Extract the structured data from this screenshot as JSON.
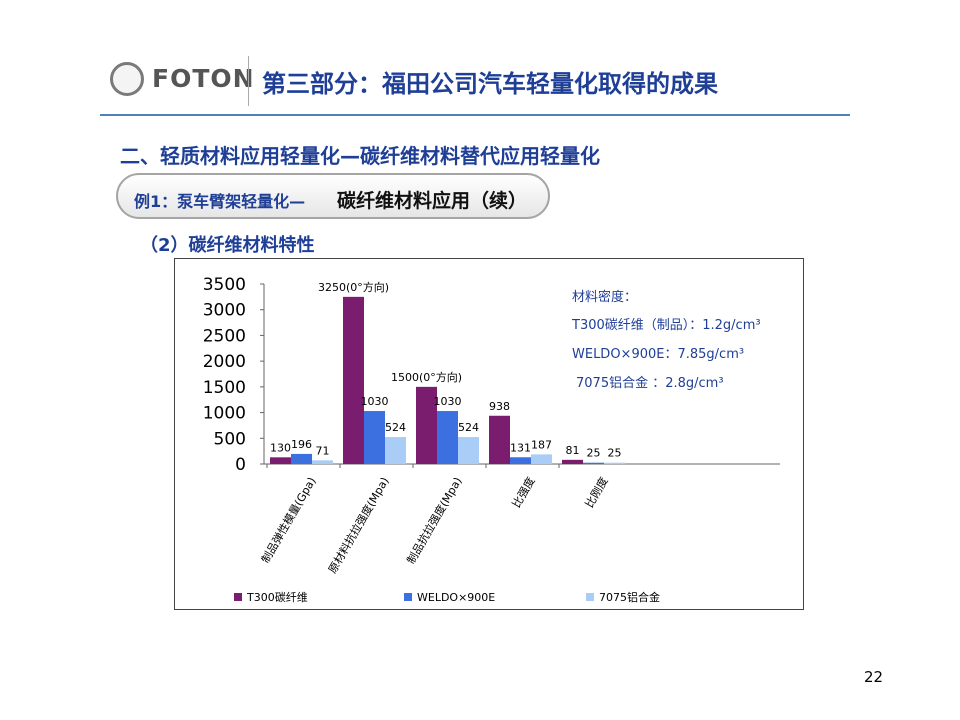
{
  "header": {
    "logo_text": "FOTON",
    "title": "第三部分：福田公司汽车轻量化取得的成果"
  },
  "section_title": "二、轻质材料应用轻量化—碳纤维材料替代应用轻量化",
  "example_label": {
    "part1": "例1：泵车臂架轻量化—",
    "part2": "碳纤维材料应用（续）"
  },
  "subsection_title": "（2）碳纤维材料特性",
  "density_note": {
    "heading": "材料密度：",
    "lines": [
      "T300碳纤维（制品）：1.2g/cm³",
      "WELDO×900E：7.85g/cm³",
      "7075铝合金 ：2.8g/cm³"
    ]
  },
  "page_number": "22",
  "chart_data": {
    "type": "bar",
    "categories": [
      "制品弹性模量(Gpa)",
      "原材料抗拉强度(Mpa)",
      "制品抗拉强度(Mpa)",
      "比强度",
      "比刚度"
    ],
    "series": [
      {
        "name": "T300碳纤维",
        "values": [
          130,
          3250,
          1500,
          938,
          81
        ],
        "labels": [
          "130",
          "3250(0°方向)",
          "1500(0°方向)",
          "938",
          "81"
        ],
        "color": "#7b1d6e"
      },
      {
        "name": "WELDO×900E",
        "values": [
          196,
          1030,
          1030,
          131,
          25
        ],
        "labels": [
          "196",
          "1030",
          "1030",
          "131",
          "25"
        ],
        "color": "#3c6fe0"
      },
      {
        "name": "7075铝合金",
        "values": [
          71,
          524,
          524,
          187,
          25
        ],
        "labels": [
          "71",
          "524",
          "524",
          "187",
          "25"
        ],
        "color": "#a9cdf6"
      }
    ],
    "y_ticks": [
      "3500",
      "3000",
      "2500",
      "2000",
      "1500",
      "1000",
      "500",
      "0"
    ],
    "ylim": [
      0,
      3500
    ],
    "legend_position": "bottom",
    "grid": false
  }
}
